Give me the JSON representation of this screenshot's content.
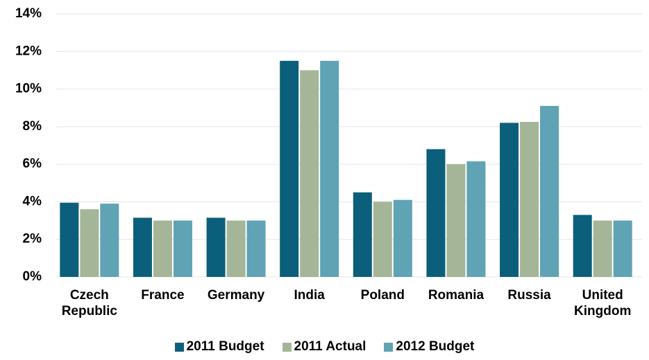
{
  "chart_data": {
    "type": "bar",
    "categories": [
      "Czech Republic",
      "France",
      "Germany",
      "India",
      "Poland",
      "Romania",
      "Russia",
      "United Kingdom"
    ],
    "series": [
      {
        "name": "2011 Budget",
        "color": "#0b5f7b",
        "values": [
          3.95,
          3.15,
          3.15,
          11.5,
          4.5,
          6.8,
          8.2,
          3.3
        ]
      },
      {
        "name": "2011 Actual",
        "color": "#a4b697",
        "values": [
          3.6,
          3.0,
          3.0,
          11.0,
          4.0,
          6.0,
          8.25,
          3.0
        ]
      },
      {
        "name": "2012 Budget",
        "color": "#5fa3b5",
        "values": [
          3.9,
          3.0,
          3.0,
          11.5,
          4.1,
          6.15,
          9.1,
          3.0
        ]
      }
    ],
    "ylim": [
      0,
      14
    ],
    "yticks": [
      {
        "value": 0,
        "label": "0%"
      },
      {
        "value": 2,
        "label": "2%"
      },
      {
        "value": 4,
        "label": "4%"
      },
      {
        "value": 6,
        "label": "6%"
      },
      {
        "value": 8,
        "label": "8%"
      },
      {
        "value": 10,
        "label": "10%"
      },
      {
        "value": 12,
        "label": "12%"
      },
      {
        "value": 14,
        "label": "14%"
      }
    ],
    "grid": true,
    "legend": "bottom"
  }
}
